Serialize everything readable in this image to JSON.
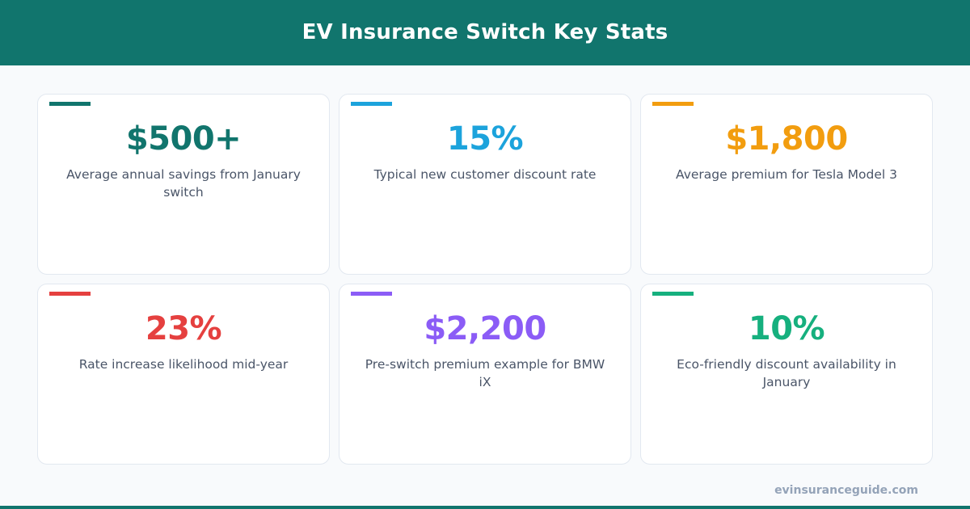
{
  "header": {
    "title": "EV Insurance Switch Key Stats",
    "background_color": "#11756d"
  },
  "stats": [
    {
      "value": "$500+",
      "label": "Average annual savings from January switch",
      "color": "#11756d"
    },
    {
      "value": "15%",
      "label": "Typical new customer discount rate",
      "color": "#1ca3dc"
    },
    {
      "value": "$1,800",
      "label": "Average premium for Tesla Model 3",
      "color": "#f29d0f"
    },
    {
      "value": "23%",
      "label": "Rate increase likelihood mid-year",
      "color": "#e5403f"
    },
    {
      "value": "$2,200",
      "label": "Pre-switch premium example for BMW iX",
      "color": "#8b5cf6"
    },
    {
      "value": "10%",
      "label": "Eco-friendly discount availability in January",
      "color": "#16b07e"
    }
  ],
  "footer": {
    "url": "evinsuranceguide.com"
  }
}
